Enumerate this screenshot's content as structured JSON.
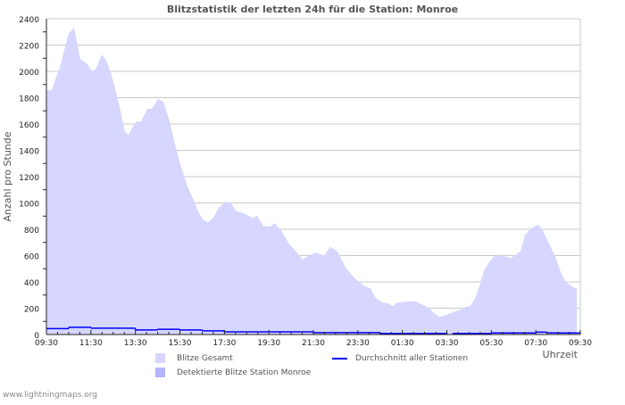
{
  "chart_data": {
    "type": "area",
    "title": "Blitzstatistik der letzten 24h für die Station: Monroe",
    "xlabel": "Uhrzeit",
    "ylabel": "Anzahl pro Stunde",
    "ylim": [
      0,
      2400
    ],
    "yticks": [
      "0",
      "200",
      "400",
      "600",
      "800",
      "1000",
      "1200",
      "1400",
      "1600",
      "1800",
      "2000",
      "2200",
      "2400"
    ],
    "xticks": [
      "09:30",
      "11:30",
      "13:30",
      "15:30",
      "17:30",
      "19:30",
      "21:30",
      "23:30",
      "01:30",
      "03:30",
      "05:30",
      "07:30",
      "09:30"
    ],
    "x_unit": "hours since 09:30",
    "xlim": [
      0,
      24
    ],
    "grid": true,
    "series": [
      {
        "name": "Blitze Gesamt",
        "color": "#d6d6ff",
        "type": "area",
        "x": [
          0,
          0.24,
          0.44,
          0.6,
          0.8,
          1.0,
          1.24,
          1.36,
          1.52,
          1.81,
          2.05,
          2.21,
          2.49,
          2.69,
          2.93,
          3.13,
          3.33,
          3.53,
          3.69,
          3.85,
          4.05,
          4.25,
          4.54,
          4.74,
          5.02,
          5.26,
          5.54,
          5.82,
          6.06,
          6.34,
          6.62,
          6.86,
          7.06,
          7.26,
          7.5,
          7.75,
          8.07,
          8.27,
          8.55,
          8.83,
          9.07,
          9.27,
          9.47,
          9.75,
          10.03,
          10.27,
          10.56,
          10.88,
          11.24,
          11.52,
          11.84,
          12.08,
          12.48,
          12.76,
          13.08,
          13.45,
          13.85,
          14.25,
          14.57,
          14.77,
          15.09,
          15.37,
          15.57,
          15.77,
          16.09,
          16.58,
          16.9,
          17.18,
          17.46,
          17.66,
          17.86,
          18.1,
          18.38,
          18.66,
          18.86,
          19.06,
          19.26,
          19.47,
          19.67,
          19.91,
          20.11,
          20.51,
          20.87,
          21.07,
          21.31,
          21.51,
          21.79,
          22.11,
          22.31,
          22.6,
          22.88,
          23.12,
          23.32,
          23.6,
          23.84
        ],
        "values": [
          1856,
          1856,
          1958,
          2026,
          2162,
          2287,
          2332,
          2230,
          2094,
          2060,
          2004,
          2015,
          2128,
          2083,
          1970,
          1845,
          1698,
          1539,
          1517,
          1573,
          1619,
          1619,
          1716,
          1716,
          1791,
          1768,
          1621,
          1418,
          1271,
          1124,
          1022,
          921,
          869,
          853,
          885,
          966,
          1009,
          1000,
          937,
          925,
          903,
          885,
          903,
          824,
          819,
          846,
          790,
          695,
          627,
          570,
          604,
          622,
          600,
          667,
          633,
          508,
          430,
          373,
          350,
          283,
          244,
          237,
          215,
          242,
          249,
          253,
          226,
          203,
          158,
          136,
          142,
          158,
          176,
          192,
          210,
          219,
          271,
          373,
          486,
          554,
          594,
          599,
          581,
          603,
          633,
          757,
          807,
          836,
          791,
          689,
          588,
          475,
          407,
          368,
          346
        ]
      },
      {
        "name": "Detektierte Blitze Station Monroe",
        "color": "#b4b4ff",
        "type": "area",
        "x": [],
        "values": []
      },
      {
        "name": "Durchschnitt aller Stationen",
        "color": "#0000ff",
        "type": "step",
        "x": [
          0,
          1,
          2,
          3.5,
          4,
          5,
          6,
          7,
          8,
          9,
          10,
          11,
          12,
          13,
          14,
          15,
          16,
          17,
          18,
          18.25,
          19,
          20,
          21,
          22,
          22.5,
          23,
          24
        ],
        "values": [
          45,
          55,
          48,
          48,
          35,
          40,
          35,
          28,
          20,
          20,
          20,
          20,
          14,
          14,
          14,
          8,
          8,
          8,
          null,
          8,
          8,
          12,
          12,
          18,
          12,
          12,
          6
        ]
      }
    ]
  },
  "footer": "www.lightningmaps.org"
}
